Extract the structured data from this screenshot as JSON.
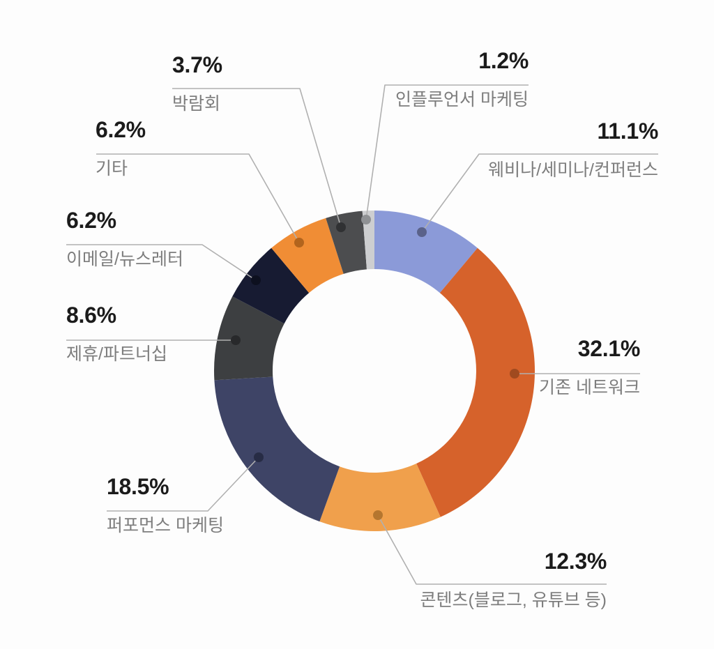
{
  "chart_data": {
    "type": "pie",
    "variant": "donut",
    "title": "",
    "unit": "%",
    "direction": "clockwise",
    "start_angle_deg": 0,
    "legend_position": "callouts-around-chart",
    "line_color": "#b0b0b0",
    "background": "#fdfdfd",
    "pct_text_color": "#1b1b1b",
    "category_text_color": "#7d7d7d",
    "slices": [
      {
        "key": "webinar-seminar-conference",
        "label": "웨비나/세미나/컨퍼런스",
        "pct_label": "11.1%",
        "value": 11.1,
        "color": "#8b9ad8",
        "dot_color": "#5a628a"
      },
      {
        "key": "existing-network",
        "label": "기존 네트워크",
        "pct_label": "32.1%",
        "value": 32.1,
        "color": "#d6622b",
        "dot_color": "#a04a1f"
      },
      {
        "key": "content-blog-youtube",
        "label": "콘텐츠(블로그, 유튜브 등)",
        "pct_label": "12.3%",
        "value": 12.3,
        "color": "#f0a04c",
        "dot_color": "#b5762f"
      },
      {
        "key": "performance-marketing",
        "label": "퍼포먼스 마케팅",
        "pct_label": "18.5%",
        "value": 18.5,
        "color": "#3e4466",
        "dot_color": "#272c45"
      },
      {
        "key": "affiliate-partnership",
        "label": "제휴/파트너십",
        "pct_label": "8.6%",
        "value": 8.6,
        "color": "#3d3f41",
        "dot_color": "#28292b"
      },
      {
        "key": "email-newsletter",
        "label": "이메일/뉴스레터",
        "pct_label": "6.2%",
        "value": 6.2,
        "color": "#171b32",
        "dot_color": "#0d101f"
      },
      {
        "key": "other",
        "label": "기타",
        "pct_label": "6.2%",
        "value": 6.2,
        "color": "#f08d35",
        "dot_color": "#b2641d"
      },
      {
        "key": "exhibition",
        "label": "박람회",
        "pct_label": "3.7%",
        "value": 3.7,
        "color": "#4c4d4f",
        "dot_color": "#303133"
      },
      {
        "key": "influencer-marketing",
        "label": "인플루언서 마케팅",
        "pct_label": "1.2%",
        "value": 1.2,
        "color": "#cdced0",
        "dot_color": "#8f9194"
      }
    ]
  }
}
